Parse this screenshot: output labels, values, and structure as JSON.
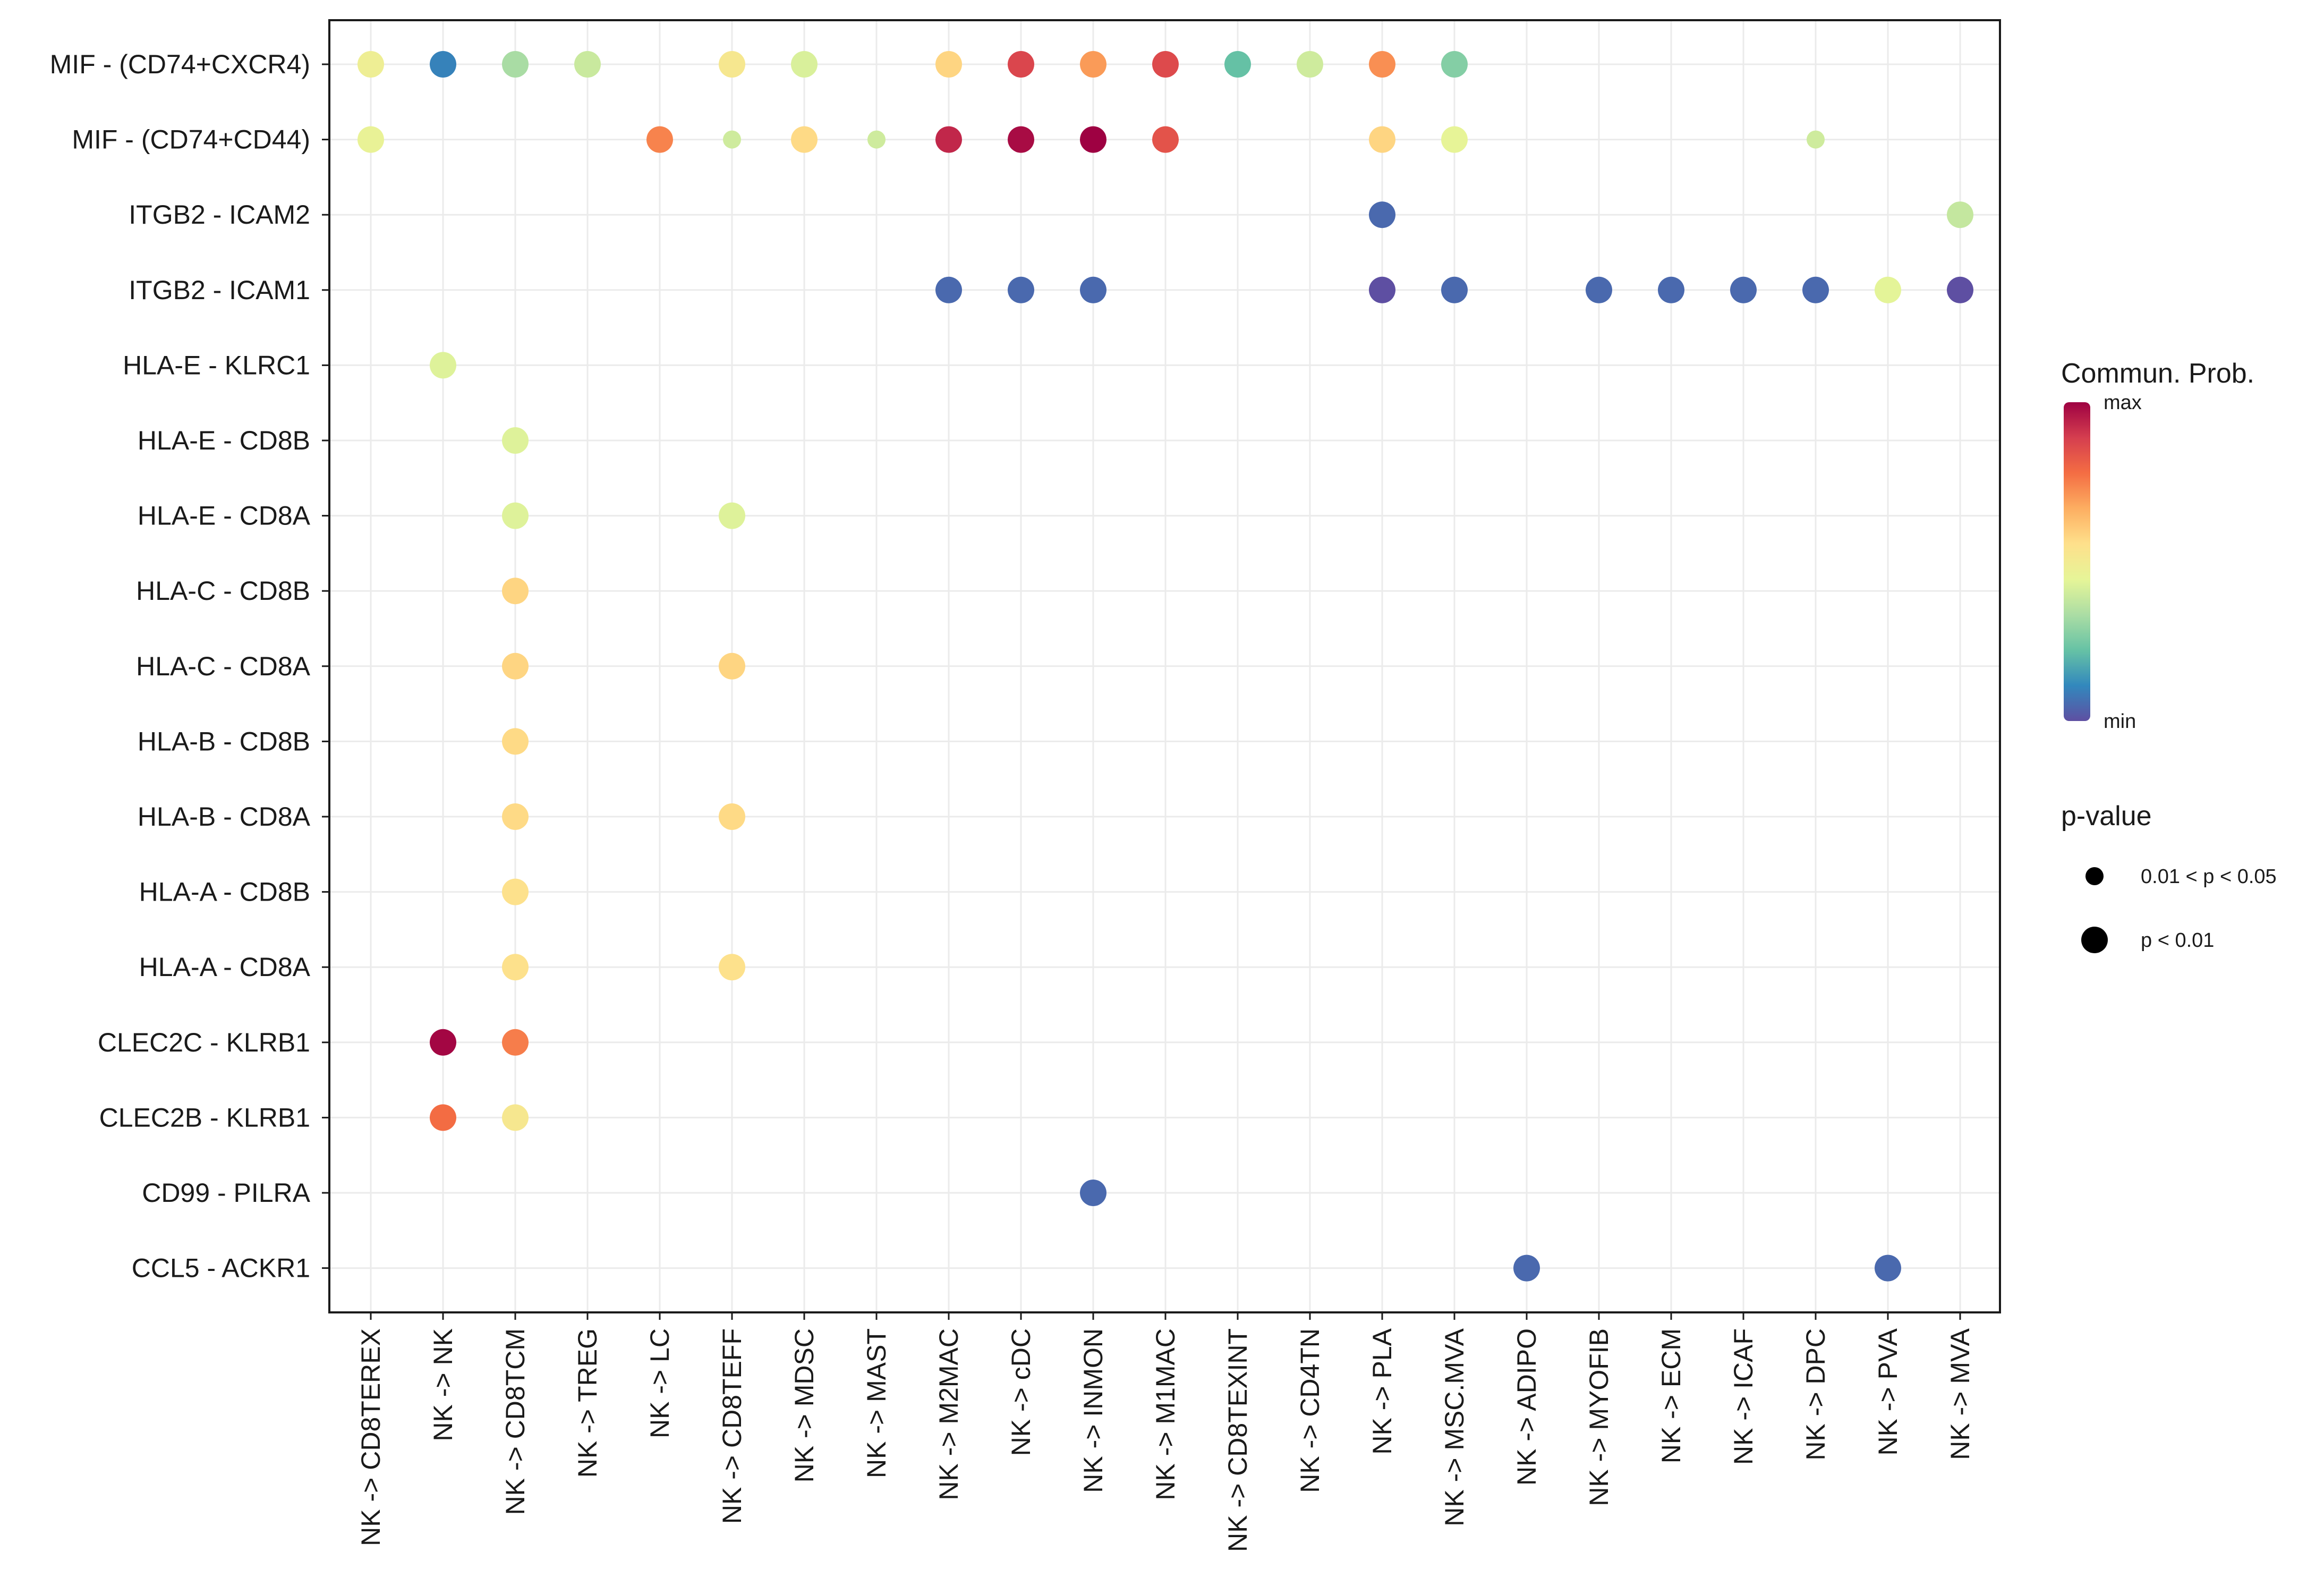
{
  "chart_data": {
    "type": "dot",
    "title": "",
    "xlabel": "",
    "ylabel": "",
    "x_categories": [
      "NK -> CD8TEREX",
      "NK -> NK",
      "NK -> CD8TCM",
      "NK -> TREG",
      "NK -> LC",
      "NK -> CD8TEFF",
      "NK -> MDSC",
      "NK -> MAST",
      "NK -> M2MAC",
      "NK -> cDC",
      "NK -> INMON",
      "NK -> M1MAC",
      "NK -> CD8TEXINT",
      "NK -> CD4TN",
      "NK -> PLA",
      "NK -> MSC.MVA",
      "NK -> ADIPO",
      "NK -> MYOFIB",
      "NK -> ECM",
      "NK -> ICAF",
      "NK -> DPC",
      "NK -> PVA",
      "NK -> MVA"
    ],
    "y_categories": [
      "MIF - (CD74+CXCR4)",
      "MIF - (CD74+CD44)",
      "ITGB2 - ICAM2",
      "ITGB2 - ICAM1",
      "HLA-E - KLRC1",
      "HLA-E - CD8B",
      "HLA-E - CD8A",
      "HLA-C - CD8B",
      "HLA-C - CD8A",
      "HLA-B - CD8B",
      "HLA-B - CD8A",
      "HLA-A - CD8B",
      "HLA-A - CD8A",
      "CLEC2C - KLRB1",
      "CLEC2B - KLRB1",
      "CD99 - PILRA",
      "CCL5 - ACKR1"
    ],
    "points": [
      {
        "x": 0,
        "y": 0,
        "prob": 0.48,
        "pval": "p < 0.01"
      },
      {
        "x": 1,
        "y": 0,
        "prob": 0.1,
        "pval": "p < 0.01"
      },
      {
        "x": 2,
        "y": 0,
        "prob": 0.33,
        "pval": "p < 0.01"
      },
      {
        "x": 3,
        "y": 0,
        "prob": 0.39,
        "pval": "p < 0.01"
      },
      {
        "x": 5,
        "y": 0,
        "prob": 0.52,
        "pval": "p < 0.01"
      },
      {
        "x": 6,
        "y": 0,
        "prob": 0.42,
        "pval": "p < 0.01"
      },
      {
        "x": 8,
        "y": 0,
        "prob": 0.58,
        "pval": "p < 0.01"
      },
      {
        "x": 9,
        "y": 0,
        "prob": 0.87,
        "pval": "p < 0.01"
      },
      {
        "x": 10,
        "y": 0,
        "prob": 0.7,
        "pval": "p < 0.01"
      },
      {
        "x": 11,
        "y": 0,
        "prob": 0.86,
        "pval": "p < 0.01"
      },
      {
        "x": 12,
        "y": 0,
        "prob": 0.22,
        "pval": "p < 0.01"
      },
      {
        "x": 13,
        "y": 0,
        "prob": 0.4,
        "pval": "p < 0.01"
      },
      {
        "x": 14,
        "y": 0,
        "prob": 0.72,
        "pval": "p < 0.01"
      },
      {
        "x": 15,
        "y": 0,
        "prob": 0.27,
        "pval": "p < 0.01"
      },
      {
        "x": 0,
        "y": 1,
        "prob": 0.46,
        "pval": "p < 0.01"
      },
      {
        "x": 4,
        "y": 1,
        "prob": 0.74,
        "pval": "p < 0.01"
      },
      {
        "x": 5,
        "y": 1,
        "prob": 0.4,
        "pval": "0.01 < p < 0.05"
      },
      {
        "x": 6,
        "y": 1,
        "prob": 0.57,
        "pval": "p < 0.01"
      },
      {
        "x": 7,
        "y": 1,
        "prob": 0.4,
        "pval": "0.01 < p < 0.05"
      },
      {
        "x": 8,
        "y": 1,
        "prob": 0.93,
        "pval": "p < 0.01"
      },
      {
        "x": 9,
        "y": 1,
        "prob": 0.98,
        "pval": "p < 0.01"
      },
      {
        "x": 10,
        "y": 1,
        "prob": 1.0,
        "pval": "p < 0.01"
      },
      {
        "x": 11,
        "y": 1,
        "prob": 0.84,
        "pval": "p < 0.01"
      },
      {
        "x": 14,
        "y": 1,
        "prob": 0.58,
        "pval": "p < 0.01"
      },
      {
        "x": 15,
        "y": 1,
        "prob": 0.45,
        "pval": "p < 0.01"
      },
      {
        "x": 20,
        "y": 1,
        "prob": 0.4,
        "pval": "0.01 < p < 0.05"
      },
      {
        "x": 14,
        "y": 2,
        "prob": 0.05,
        "pval": "p < 0.01"
      },
      {
        "x": 22,
        "y": 2,
        "prob": 0.38,
        "pval": "p < 0.01"
      },
      {
        "x": 8,
        "y": 3,
        "prob": 0.05,
        "pval": "p < 0.01"
      },
      {
        "x": 9,
        "y": 3,
        "prob": 0.05,
        "pval": "p < 0.01"
      },
      {
        "x": 10,
        "y": 3,
        "prob": 0.05,
        "pval": "p < 0.01"
      },
      {
        "x": 14,
        "y": 3,
        "prob": 0.0,
        "pval": "p < 0.01"
      },
      {
        "x": 15,
        "y": 3,
        "prob": 0.05,
        "pval": "p < 0.01"
      },
      {
        "x": 17,
        "y": 3,
        "prob": 0.05,
        "pval": "p < 0.01"
      },
      {
        "x": 18,
        "y": 3,
        "prob": 0.05,
        "pval": "p < 0.01"
      },
      {
        "x": 19,
        "y": 3,
        "prob": 0.05,
        "pval": "p < 0.01"
      },
      {
        "x": 20,
        "y": 3,
        "prob": 0.05,
        "pval": "p < 0.01"
      },
      {
        "x": 21,
        "y": 3,
        "prob": 0.44,
        "pval": "p < 0.01"
      },
      {
        "x": 22,
        "y": 3,
        "prob": 0.0,
        "pval": "p < 0.01"
      },
      {
        "x": 1,
        "y": 4,
        "prob": 0.43,
        "pval": "p < 0.01"
      },
      {
        "x": 2,
        "y": 5,
        "prob": 0.43,
        "pval": "p < 0.01"
      },
      {
        "x": 2,
        "y": 6,
        "prob": 0.43,
        "pval": "p < 0.01"
      },
      {
        "x": 5,
        "y": 6,
        "prob": 0.43,
        "pval": "p < 0.01"
      },
      {
        "x": 2,
        "y": 7,
        "prob": 0.58,
        "pval": "p < 0.01"
      },
      {
        "x": 2,
        "y": 8,
        "prob": 0.58,
        "pval": "p < 0.01"
      },
      {
        "x": 5,
        "y": 8,
        "prob": 0.58,
        "pval": "p < 0.01"
      },
      {
        "x": 2,
        "y": 9,
        "prob": 0.57,
        "pval": "p < 0.01"
      },
      {
        "x": 2,
        "y": 10,
        "prob": 0.57,
        "pval": "p < 0.01"
      },
      {
        "x": 5,
        "y": 10,
        "prob": 0.57,
        "pval": "p < 0.01"
      },
      {
        "x": 2,
        "y": 11,
        "prob": 0.55,
        "pval": "p < 0.01"
      },
      {
        "x": 2,
        "y": 12,
        "prob": 0.55,
        "pval": "p < 0.01"
      },
      {
        "x": 5,
        "y": 12,
        "prob": 0.55,
        "pval": "p < 0.01"
      },
      {
        "x": 1,
        "y": 13,
        "prob": 0.99,
        "pval": "p < 0.01"
      },
      {
        "x": 2,
        "y": 13,
        "prob": 0.75,
        "pval": "p < 0.01"
      },
      {
        "x": 1,
        "y": 14,
        "prob": 0.78,
        "pval": "p < 0.01"
      },
      {
        "x": 2,
        "y": 14,
        "prob": 0.52,
        "pval": "p < 0.01"
      },
      {
        "x": 10,
        "y": 15,
        "prob": 0.05,
        "pval": "p < 0.01"
      },
      {
        "x": 16,
        "y": 16,
        "prob": 0.05,
        "pval": "p < 0.01"
      },
      {
        "x": 21,
        "y": 16,
        "prob": 0.05,
        "pval": "p < 0.01"
      }
    ],
    "colorbar": {
      "title": "Commun. Prob.",
      "max_label": "max",
      "min_label": "min",
      "palette": [
        "#5E4FA2",
        "#3288BD",
        "#66C2A5",
        "#ABDDA4",
        "#E6F598",
        "#FEE08B",
        "#FDAE61",
        "#F46D43",
        "#D53E4F",
        "#9E0142"
      ]
    },
    "size_legend": {
      "title": "p-value",
      "items": [
        {
          "label": "0.01 < p < 0.05",
          "size": "small"
        },
        {
          "label": "p < 0.01",
          "size": "large"
        }
      ]
    },
    "grid": true
  }
}
